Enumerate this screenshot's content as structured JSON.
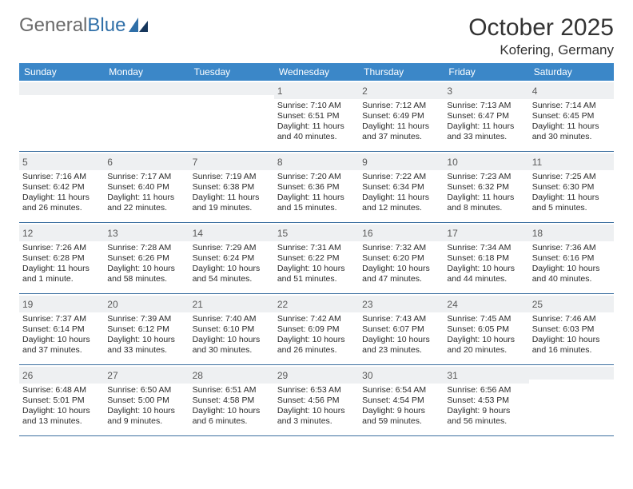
{
  "brand": {
    "part1": "General",
    "part2": "Blue"
  },
  "title": "October 2025",
  "location": "Kofering, Germany",
  "colors": {
    "header_bg": "#3b87c8",
    "header_text": "#ffffff",
    "rule": "#3b6fa0",
    "daybar": "#eef0f2",
    "text": "#2b2b2b",
    "logo_gray": "#6a6a6a",
    "logo_blue": "#2f6fa8"
  },
  "dow": [
    "Sunday",
    "Monday",
    "Tuesday",
    "Wednesday",
    "Thursday",
    "Friday",
    "Saturday"
  ],
  "weeks": [
    [
      {
        "n": "",
        "sr": "",
        "ss": "",
        "dl": ""
      },
      {
        "n": "",
        "sr": "",
        "ss": "",
        "dl": ""
      },
      {
        "n": "",
        "sr": "",
        "ss": "",
        "dl": ""
      },
      {
        "n": "1",
        "sr": "Sunrise: 7:10 AM",
        "ss": "Sunset: 6:51 PM",
        "dl": "Daylight: 11 hours and 40 minutes."
      },
      {
        "n": "2",
        "sr": "Sunrise: 7:12 AM",
        "ss": "Sunset: 6:49 PM",
        "dl": "Daylight: 11 hours and 37 minutes."
      },
      {
        "n": "3",
        "sr": "Sunrise: 7:13 AM",
        "ss": "Sunset: 6:47 PM",
        "dl": "Daylight: 11 hours and 33 minutes."
      },
      {
        "n": "4",
        "sr": "Sunrise: 7:14 AM",
        "ss": "Sunset: 6:45 PM",
        "dl": "Daylight: 11 hours and 30 minutes."
      }
    ],
    [
      {
        "n": "5",
        "sr": "Sunrise: 7:16 AM",
        "ss": "Sunset: 6:42 PM",
        "dl": "Daylight: 11 hours and 26 minutes."
      },
      {
        "n": "6",
        "sr": "Sunrise: 7:17 AM",
        "ss": "Sunset: 6:40 PM",
        "dl": "Daylight: 11 hours and 22 minutes."
      },
      {
        "n": "7",
        "sr": "Sunrise: 7:19 AM",
        "ss": "Sunset: 6:38 PM",
        "dl": "Daylight: 11 hours and 19 minutes."
      },
      {
        "n": "8",
        "sr": "Sunrise: 7:20 AM",
        "ss": "Sunset: 6:36 PM",
        "dl": "Daylight: 11 hours and 15 minutes."
      },
      {
        "n": "9",
        "sr": "Sunrise: 7:22 AM",
        "ss": "Sunset: 6:34 PM",
        "dl": "Daylight: 11 hours and 12 minutes."
      },
      {
        "n": "10",
        "sr": "Sunrise: 7:23 AM",
        "ss": "Sunset: 6:32 PM",
        "dl": "Daylight: 11 hours and 8 minutes."
      },
      {
        "n": "11",
        "sr": "Sunrise: 7:25 AM",
        "ss": "Sunset: 6:30 PM",
        "dl": "Daylight: 11 hours and 5 minutes."
      }
    ],
    [
      {
        "n": "12",
        "sr": "Sunrise: 7:26 AM",
        "ss": "Sunset: 6:28 PM",
        "dl": "Daylight: 11 hours and 1 minute."
      },
      {
        "n": "13",
        "sr": "Sunrise: 7:28 AM",
        "ss": "Sunset: 6:26 PM",
        "dl": "Daylight: 10 hours and 58 minutes."
      },
      {
        "n": "14",
        "sr": "Sunrise: 7:29 AM",
        "ss": "Sunset: 6:24 PM",
        "dl": "Daylight: 10 hours and 54 minutes."
      },
      {
        "n": "15",
        "sr": "Sunrise: 7:31 AM",
        "ss": "Sunset: 6:22 PM",
        "dl": "Daylight: 10 hours and 51 minutes."
      },
      {
        "n": "16",
        "sr": "Sunrise: 7:32 AM",
        "ss": "Sunset: 6:20 PM",
        "dl": "Daylight: 10 hours and 47 minutes."
      },
      {
        "n": "17",
        "sr": "Sunrise: 7:34 AM",
        "ss": "Sunset: 6:18 PM",
        "dl": "Daylight: 10 hours and 44 minutes."
      },
      {
        "n": "18",
        "sr": "Sunrise: 7:36 AM",
        "ss": "Sunset: 6:16 PM",
        "dl": "Daylight: 10 hours and 40 minutes."
      }
    ],
    [
      {
        "n": "19",
        "sr": "Sunrise: 7:37 AM",
        "ss": "Sunset: 6:14 PM",
        "dl": "Daylight: 10 hours and 37 minutes."
      },
      {
        "n": "20",
        "sr": "Sunrise: 7:39 AM",
        "ss": "Sunset: 6:12 PM",
        "dl": "Daylight: 10 hours and 33 minutes."
      },
      {
        "n": "21",
        "sr": "Sunrise: 7:40 AM",
        "ss": "Sunset: 6:10 PM",
        "dl": "Daylight: 10 hours and 30 minutes."
      },
      {
        "n": "22",
        "sr": "Sunrise: 7:42 AM",
        "ss": "Sunset: 6:09 PM",
        "dl": "Daylight: 10 hours and 26 minutes."
      },
      {
        "n": "23",
        "sr": "Sunrise: 7:43 AM",
        "ss": "Sunset: 6:07 PM",
        "dl": "Daylight: 10 hours and 23 minutes."
      },
      {
        "n": "24",
        "sr": "Sunrise: 7:45 AM",
        "ss": "Sunset: 6:05 PM",
        "dl": "Daylight: 10 hours and 20 minutes."
      },
      {
        "n": "25",
        "sr": "Sunrise: 7:46 AM",
        "ss": "Sunset: 6:03 PM",
        "dl": "Daylight: 10 hours and 16 minutes."
      }
    ],
    [
      {
        "n": "26",
        "sr": "Sunrise: 6:48 AM",
        "ss": "Sunset: 5:01 PM",
        "dl": "Daylight: 10 hours and 13 minutes."
      },
      {
        "n": "27",
        "sr": "Sunrise: 6:50 AM",
        "ss": "Sunset: 5:00 PM",
        "dl": "Daylight: 10 hours and 9 minutes."
      },
      {
        "n": "28",
        "sr": "Sunrise: 6:51 AM",
        "ss": "Sunset: 4:58 PM",
        "dl": "Daylight: 10 hours and 6 minutes."
      },
      {
        "n": "29",
        "sr": "Sunrise: 6:53 AM",
        "ss": "Sunset: 4:56 PM",
        "dl": "Daylight: 10 hours and 3 minutes."
      },
      {
        "n": "30",
        "sr": "Sunrise: 6:54 AM",
        "ss": "Sunset: 4:54 PM",
        "dl": "Daylight: 9 hours and 59 minutes."
      },
      {
        "n": "31",
        "sr": "Sunrise: 6:56 AM",
        "ss": "Sunset: 4:53 PM",
        "dl": "Daylight: 9 hours and 56 minutes."
      },
      {
        "n": "",
        "sr": "",
        "ss": "",
        "dl": ""
      }
    ]
  ]
}
